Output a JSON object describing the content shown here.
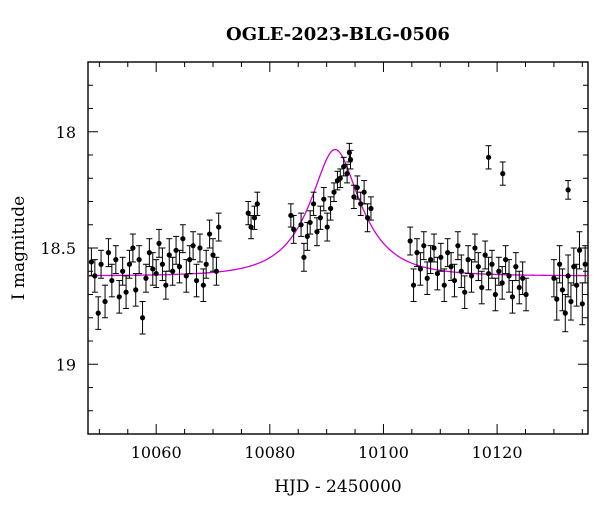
{
  "chart_data": {
    "type": "scatter",
    "title": "OGLE-2023-BLG-0506",
    "xlabel": "HJD - 2450000",
    "ylabel": "I magnitude",
    "xlim": [
      10048,
      10136
    ],
    "ylim": [
      19.3,
      17.7
    ],
    "y_inverted": true,
    "xticks": [
      10060,
      10080,
      10100,
      10120
    ],
    "yticks": [
      18,
      18.5,
      19
    ],
    "grid": false,
    "model_color": "#d000d0",
    "point_color": "#000000",
    "model": {
      "t0": 10091.5,
      "tE": 8.5,
      "u0": 0.47,
      "baseline": 18.62
    },
    "series": [
      {
        "type": "errorbar",
        "x": [
          10048.6,
          10049.2,
          10049.8,
          10050.3,
          10051.0,
          10051.6,
          10052.2,
          10052.9,
          10053.5,
          10054.1,
          10054.7,
          10055.3,
          10055.9,
          10056.4,
          10057.0,
          10057.6,
          10058.2,
          10058.8,
          10059.4,
          10060.0,
          10060.5,
          10061.1,
          10061.7,
          10062.3,
          10062.9,
          10063.5,
          10064.1,
          10064.7,
          10065.3,
          10065.9,
          10066.5,
          10067.1,
          10067.7,
          10068.3,
          10068.8,
          10069.4,
          10070.0,
          10070.6,
          10071.0,
          10076.2,
          10076.7,
          10077.3,
          10077.8,
          10083.7,
          10084.2,
          10085.5,
          10086.0,
          10086.6,
          10087.1,
          10087.7,
          10088.3,
          10088.9,
          10089.5,
          10090.1,
          10090.7,
          10091.3,
          10091.9,
          10092.4,
          10093.0,
          10093.6,
          10094.2,
          10094.8,
          10095.4,
          10096.0,
          10096.6,
          10097.2,
          10097.8,
          10104.7,
          10105.3,
          10105.9,
          10106.5,
          10107.1,
          10107.7,
          10108.3,
          10108.9,
          10109.5,
          10110.1,
          10110.7,
          10111.3,
          10111.9,
          10112.5,
          10113.1,
          10113.7,
          10114.3,
          10114.9,
          10115.5,
          10116.1,
          10116.7,
          10117.3,
          10117.9,
          10118.5,
          10119.1,
          10119.7,
          10120.3,
          10120.9,
          10121.5,
          10122.1,
          10122.7,
          10123.3,
          10123.9,
          10124.5,
          10125.1,
          10130.0,
          10130.5,
          10131.0,
          10131.5,
          10132.0,
          10132.5,
          10133.0,
          10133.5,
          10134.0,
          10134.5,
          10135.0,
          10135.5,
          10118.5,
          10121.0,
          10132.5,
          10094.0
        ],
        "y": [
          18.56,
          18.62,
          18.78,
          18.57,
          18.73,
          18.52,
          18.64,
          18.55,
          18.71,
          18.6,
          18.69,
          18.57,
          18.5,
          18.68,
          18.55,
          18.8,
          18.63,
          18.52,
          18.59,
          18.61,
          18.48,
          18.57,
          18.66,
          18.53,
          18.6,
          18.51,
          18.58,
          18.46,
          18.62,
          18.55,
          18.49,
          18.64,
          18.5,
          18.66,
          18.57,
          18.44,
          18.53,
          18.6,
          18.41,
          18.35,
          18.41,
          18.37,
          18.31,
          18.36,
          18.42,
          18.4,
          18.54,
          18.45,
          18.39,
          18.31,
          18.43,
          18.37,
          18.29,
          18.41,
          18.33,
          18.26,
          18.21,
          18.2,
          18.15,
          18.18,
          18.12,
          18.28,
          18.24,
          18.31,
          18.26,
          18.37,
          18.33,
          18.47,
          18.66,
          18.52,
          18.59,
          18.49,
          18.63,
          18.55,
          18.5,
          18.61,
          18.54,
          18.66,
          18.52,
          18.58,
          18.64,
          18.49,
          18.6,
          18.69,
          18.55,
          18.62,
          18.5,
          18.58,
          18.67,
          18.53,
          18.61,
          18.57,
          18.7,
          18.6,
          18.65,
          18.55,
          18.62,
          18.71,
          18.58,
          18.67,
          18.63,
          18.7,
          18.63,
          18.72,
          18.57,
          18.68,
          18.78,
          18.62,
          18.73,
          18.58,
          18.66,
          18.51,
          18.74,
          18.57,
          18.11,
          18.18,
          18.25,
          18.09
        ],
        "yerr": [
          0.06,
          0.07,
          0.07,
          0.06,
          0.07,
          0.06,
          0.07,
          0.06,
          0.07,
          0.06,
          0.07,
          0.06,
          0.06,
          0.07,
          0.06,
          0.07,
          0.06,
          0.06,
          0.07,
          0.06,
          0.06,
          0.07,
          0.06,
          0.07,
          0.06,
          0.06,
          0.07,
          0.06,
          0.07,
          0.06,
          0.06,
          0.07,
          0.06,
          0.07,
          0.06,
          0.06,
          0.07,
          0.06,
          0.06,
          0.05,
          0.05,
          0.05,
          0.05,
          0.05,
          0.06,
          0.05,
          0.06,
          0.06,
          0.05,
          0.05,
          0.06,
          0.05,
          0.05,
          0.06,
          0.05,
          0.04,
          0.04,
          0.04,
          0.04,
          0.04,
          0.04,
          0.05,
          0.05,
          0.05,
          0.05,
          0.06,
          0.05,
          0.06,
          0.07,
          0.06,
          0.07,
          0.06,
          0.07,
          0.06,
          0.06,
          0.07,
          0.06,
          0.07,
          0.06,
          0.06,
          0.07,
          0.06,
          0.07,
          0.07,
          0.06,
          0.07,
          0.06,
          0.06,
          0.07,
          0.06,
          0.07,
          0.06,
          0.07,
          0.06,
          0.07,
          0.06,
          0.07,
          0.07,
          0.06,
          0.07,
          0.07,
          0.07,
          0.08,
          0.09,
          0.08,
          0.09,
          0.08,
          0.09,
          0.08,
          0.08,
          0.09,
          0.08,
          0.09,
          0.08,
          0.05,
          0.05,
          0.04,
          0.04
        ]
      }
    ]
  }
}
